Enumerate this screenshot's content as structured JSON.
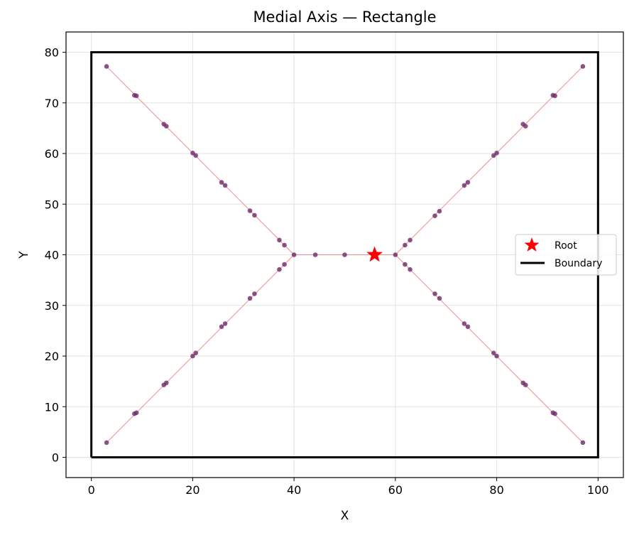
{
  "chart_data": {
    "type": "scatter",
    "title": "Medial Axis — Rectangle",
    "xlabel": "X",
    "ylabel": "Y",
    "xlim": [
      -5,
      105
    ],
    "ylim": [
      -4,
      84
    ],
    "xticks": [
      0,
      20,
      40,
      60,
      80,
      100
    ],
    "yticks": [
      0,
      10,
      20,
      30,
      40,
      50,
      60,
      70,
      80
    ],
    "grid": true,
    "legend_position": "center-right",
    "colors": {
      "points": "#6b2a6b",
      "skeleton_line": "#f08080",
      "root": "#ff0000",
      "boundary": "#000000"
    },
    "boundary": [
      [
        0,
        0
      ],
      [
        100,
        0
      ],
      [
        100,
        80
      ],
      [
        0,
        80
      ],
      [
        0,
        0
      ]
    ],
    "root": [
      55.9,
      40
    ],
    "skeleton_edges": [
      [
        [
          3,
          77.2
        ],
        [
          40,
          40
        ]
      ],
      [
        [
          3,
          2.9
        ],
        [
          40,
          40
        ]
      ],
      [
        [
          97,
          77.2
        ],
        [
          60,
          40
        ]
      ],
      [
        [
          97,
          2.9
        ],
        [
          60,
          40
        ]
      ],
      [
        [
          40,
          40
        ],
        [
          60,
          40
        ]
      ]
    ],
    "points": [
      [
        3,
        77.2
      ],
      [
        8.5,
        71.5
      ],
      [
        8.9,
        71.4
      ],
      [
        14.3,
        65.8
      ],
      [
        14.8,
        65.4
      ],
      [
        20,
        60.1
      ],
      [
        20.6,
        59.6
      ],
      [
        25.7,
        54.3
      ],
      [
        26.4,
        53.7
      ],
      [
        31.3,
        48.7
      ],
      [
        32.2,
        47.8
      ],
      [
        37.1,
        42.9
      ],
      [
        38.1,
        41.9
      ],
      [
        3,
        2.9
      ],
      [
        8.5,
        8.6
      ],
      [
        8.9,
        8.8
      ],
      [
        14.3,
        14.3
      ],
      [
        14.8,
        14.7
      ],
      [
        20,
        20
      ],
      [
        20.6,
        20.6
      ],
      [
        25.7,
        25.8
      ],
      [
        26.4,
        26.4
      ],
      [
        31.3,
        31.4
      ],
      [
        32.2,
        32.3
      ],
      [
        37.1,
        37.1
      ],
      [
        38.1,
        38.1
      ],
      [
        40,
        40
      ],
      [
        44.2,
        40
      ],
      [
        50,
        40
      ],
      [
        60,
        40
      ],
      [
        97,
        77.2
      ],
      [
        91.5,
        71.4
      ],
      [
        91.1,
        71.5
      ],
      [
        85.7,
        65.4
      ],
      [
        85.2,
        65.8
      ],
      [
        80,
        60.1
      ],
      [
        79.4,
        59.6
      ],
      [
        74.3,
        54.3
      ],
      [
        73.6,
        53.7
      ],
      [
        68.7,
        48.6
      ],
      [
        67.8,
        47.7
      ],
      [
        62.9,
        42.9
      ],
      [
        61.9,
        41.9
      ],
      [
        97,
        2.9
      ],
      [
        91.5,
        8.6
      ],
      [
        91.1,
        8.8
      ],
      [
        85.7,
        14.3
      ],
      [
        85.2,
        14.7
      ],
      [
        80,
        20
      ],
      [
        79.4,
        20.6
      ],
      [
        74.3,
        25.8
      ],
      [
        73.6,
        26.4
      ],
      [
        68.7,
        31.4
      ],
      [
        67.8,
        32.3
      ],
      [
        62.9,
        37.1
      ],
      [
        61.9,
        38.1
      ]
    ],
    "legend": [
      {
        "label": "Root",
        "marker": "star",
        "color": "#ff0000"
      },
      {
        "label": "Boundary",
        "marker": "line",
        "color": "#000000"
      }
    ]
  }
}
